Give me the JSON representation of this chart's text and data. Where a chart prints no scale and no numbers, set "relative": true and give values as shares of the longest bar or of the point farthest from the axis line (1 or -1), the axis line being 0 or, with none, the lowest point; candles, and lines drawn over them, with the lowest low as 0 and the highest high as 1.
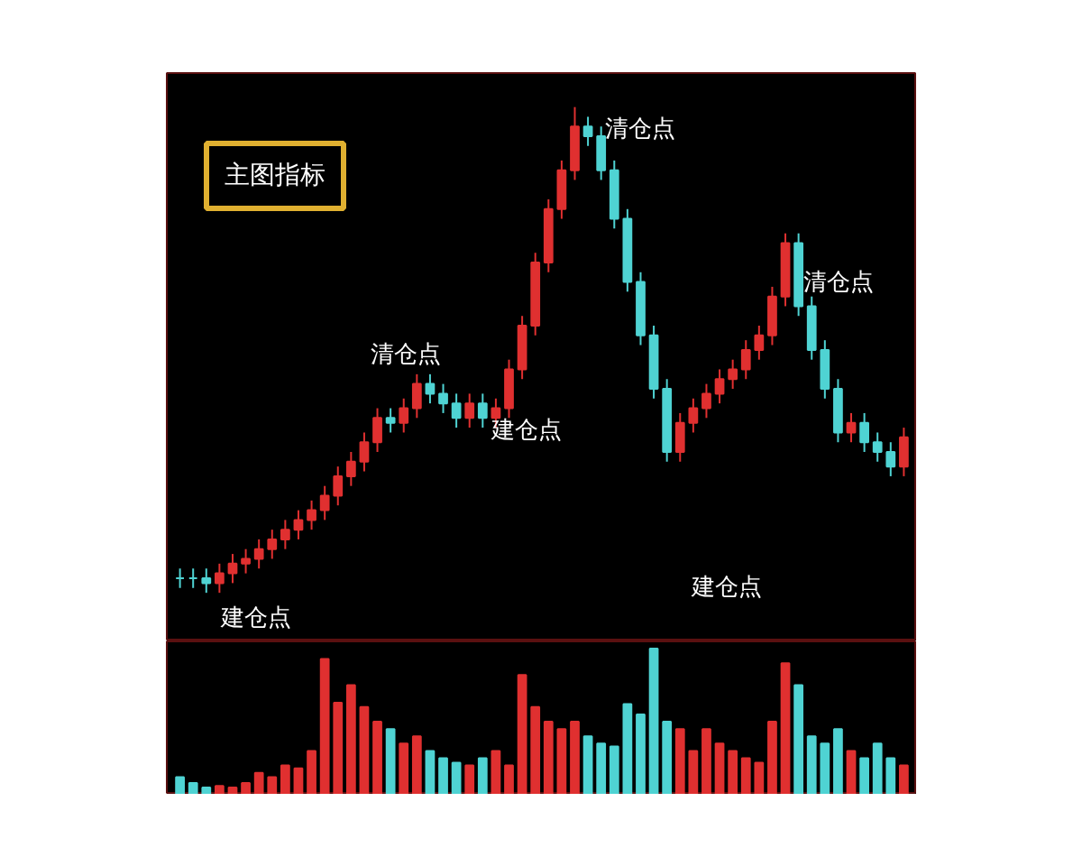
{
  "chart_data": [
    {
      "type": "candlestick",
      "title": "主图指标",
      "relative": true,
      "tick_labels": false,
      "categories": [
        null,
        null,
        null,
        null,
        null,
        null,
        null,
        null,
        null,
        null,
        null,
        null,
        null,
        null,
        null,
        null,
        null,
        null,
        null,
        null,
        null,
        null,
        null,
        null,
        null,
        null,
        null,
        null,
        null,
        null,
        null,
        null,
        null,
        null,
        null,
        null,
        null,
        null,
        null,
        null,
        null,
        null,
        null,
        null,
        null,
        null,
        null,
        null,
        null,
        null,
        null,
        null,
        null,
        null,
        null,
        null
      ],
      "ohlc": [
        [
          0.03,
          0.05,
          0.01,
          0.03
        ],
        [
          0.03,
          0.05,
          0.01,
          0.03
        ],
        [
          0.03,
          0.05,
          0.0,
          0.02
        ],
        [
          0.02,
          0.06,
          0.0,
          0.04
        ],
        [
          0.04,
          0.08,
          0.02,
          0.06
        ],
        [
          0.06,
          0.09,
          0.04,
          0.07
        ],
        [
          0.07,
          0.11,
          0.05,
          0.09
        ],
        [
          0.09,
          0.13,
          0.07,
          0.11
        ],
        [
          0.11,
          0.15,
          0.09,
          0.13
        ],
        [
          0.13,
          0.17,
          0.11,
          0.15
        ],
        [
          0.15,
          0.19,
          0.13,
          0.17
        ],
        [
          0.17,
          0.22,
          0.15,
          0.2
        ],
        [
          0.2,
          0.26,
          0.18,
          0.24
        ],
        [
          0.24,
          0.29,
          0.22,
          0.27
        ],
        [
          0.27,
          0.33,
          0.25,
          0.31
        ],
        [
          0.31,
          0.38,
          0.29,
          0.36
        ],
        [
          0.36,
          0.38,
          0.33,
          0.35
        ],
        [
          0.35,
          0.4,
          0.33,
          0.38
        ],
        [
          0.38,
          0.45,
          0.36,
          0.43
        ],
        [
          0.43,
          0.45,
          0.39,
          0.41
        ],
        [
          0.41,
          0.43,
          0.37,
          0.39
        ],
        [
          0.39,
          0.41,
          0.34,
          0.36
        ],
        [
          0.36,
          0.41,
          0.34,
          0.39
        ],
        [
          0.39,
          0.41,
          0.34,
          0.36
        ],
        [
          0.36,
          0.4,
          0.34,
          0.38
        ],
        [
          0.38,
          0.48,
          0.36,
          0.46
        ],
        [
          0.46,
          0.57,
          0.44,
          0.55
        ],
        [
          0.55,
          0.7,
          0.53,
          0.68
        ],
        [
          0.68,
          0.81,
          0.66,
          0.79
        ],
        [
          0.79,
          0.89,
          0.77,
          0.87
        ],
        [
          0.87,
          1.0,
          0.85,
          0.96
        ],
        [
          0.96,
          0.98,
          0.92,
          0.94
        ],
        [
          0.94,
          0.96,
          0.85,
          0.87
        ],
        [
          0.87,
          0.89,
          0.75,
          0.77
        ],
        [
          0.77,
          0.79,
          0.62,
          0.64
        ],
        [
          0.64,
          0.66,
          0.51,
          0.53
        ],
        [
          0.53,
          0.55,
          0.4,
          0.42
        ],
        [
          0.42,
          0.44,
          0.27,
          0.29
        ],
        [
          0.29,
          0.37,
          0.27,
          0.35
        ],
        [
          0.35,
          0.4,
          0.33,
          0.38
        ],
        [
          0.38,
          0.43,
          0.36,
          0.41
        ],
        [
          0.41,
          0.46,
          0.39,
          0.44
        ],
        [
          0.44,
          0.48,
          0.42,
          0.46
        ],
        [
          0.46,
          0.52,
          0.44,
          0.5
        ],
        [
          0.5,
          0.55,
          0.48,
          0.53
        ],
        [
          0.53,
          0.63,
          0.51,
          0.61
        ],
        [
          0.61,
          0.74,
          0.59,
          0.72
        ],
        [
          0.72,
          0.74,
          0.57,
          0.59
        ],
        [
          0.59,
          0.61,
          0.48,
          0.5
        ],
        [
          0.5,
          0.52,
          0.4,
          0.42
        ],
        [
          0.42,
          0.44,
          0.31,
          0.33
        ],
        [
          0.33,
          0.37,
          0.31,
          0.35
        ],
        [
          0.35,
          0.37,
          0.29,
          0.31
        ],
        [
          0.31,
          0.33,
          0.27,
          0.29
        ],
        [
          0.29,
          0.31,
          0.24,
          0.26
        ],
        [
          0.26,
          0.34,
          0.24,
          0.32
        ]
      ],
      "colors": [
        "#4fd3d3",
        "#4fd3d3",
        "#4fd3d3",
        "#e03030",
        "#e03030",
        "#e03030",
        "#e03030",
        "#e03030",
        "#e03030",
        "#e03030",
        "#e03030",
        "#e03030",
        "#e03030",
        "#e03030",
        "#e03030",
        "#e03030",
        "#4fd3d3",
        "#e03030",
        "#e03030",
        "#4fd3d3",
        "#4fd3d3",
        "#4fd3d3",
        "#e03030",
        "#4fd3d3",
        "#e03030",
        "#e03030",
        "#e03030",
        "#e03030",
        "#e03030",
        "#e03030",
        "#e03030",
        "#4fd3d3",
        "#4fd3d3",
        "#4fd3d3",
        "#4fd3d3",
        "#4fd3d3",
        "#4fd3d3",
        "#4fd3d3",
        "#e03030",
        "#e03030",
        "#e03030",
        "#e03030",
        "#e03030",
        "#e03030",
        "#e03030",
        "#e03030",
        "#e03030",
        "#4fd3d3",
        "#4fd3d3",
        "#4fd3d3",
        "#4fd3d3",
        "#e03030",
        "#4fd3d3",
        "#4fd3d3",
        "#4fd3d3",
        "#e03030"
      ],
      "annotations": [
        "建仓点",
        "清仓点",
        "建仓点",
        "清仓点",
        "建仓点",
        "清仓点"
      ]
    },
    {
      "type": "bar",
      "relative": true,
      "tick_labels": false,
      "categories": [
        null,
        null,
        null,
        null,
        null,
        null,
        null,
        null,
        null,
        null,
        null,
        null,
        null,
        null,
        null,
        null,
        null,
        null,
        null,
        null,
        null,
        null,
        null,
        null,
        null,
        null,
        null,
        null,
        null,
        null,
        null,
        null,
        null,
        null,
        null,
        null,
        null,
        null,
        null,
        null,
        null,
        null,
        null,
        null,
        null,
        null,
        null,
        null,
        null,
        null,
        null,
        null,
        null,
        null,
        null,
        null
      ],
      "values": [
        0.12,
        0.08,
        0.05,
        0.06,
        0.05,
        0.08,
        0.15,
        0.12,
        0.2,
        0.18,
        0.3,
        0.93,
        0.63,
        0.75,
        0.6,
        0.5,
        0.45,
        0.35,
        0.4,
        0.3,
        0.25,
        0.22,
        0.2,
        0.25,
        0.3,
        0.2,
        0.82,
        0.6,
        0.5,
        0.45,
        0.5,
        0.4,
        0.35,
        0.33,
        0.62,
        0.55,
        1.0,
        0.5,
        0.45,
        0.3,
        0.45,
        0.35,
        0.3,
        0.25,
        0.22,
        0.5,
        0.9,
        0.75,
        0.4,
        0.35,
        0.45,
        0.3,
        0.25,
        0.35,
        0.25,
        0.2
      ],
      "colors": [
        "#4fd3d3",
        "#4fd3d3",
        "#4fd3d3",
        "#e03030",
        "#e03030",
        "#e03030",
        "#e03030",
        "#e03030",
        "#e03030",
        "#e03030",
        "#e03030",
        "#e03030",
        "#e03030",
        "#e03030",
        "#e03030",
        "#e03030",
        "#4fd3d3",
        "#e03030",
        "#e03030",
        "#4fd3d3",
        "#4fd3d3",
        "#4fd3d3",
        "#e03030",
        "#4fd3d3",
        "#e03030",
        "#e03030",
        "#e03030",
        "#e03030",
        "#e03030",
        "#e03030",
        "#e03030",
        "#4fd3d3",
        "#4fd3d3",
        "#4fd3d3",
        "#4fd3d3",
        "#4fd3d3",
        "#4fd3d3",
        "#4fd3d3",
        "#e03030",
        "#e03030",
        "#e03030",
        "#e03030",
        "#e03030",
        "#e03030",
        "#e03030",
        "#e03030",
        "#e03030",
        "#4fd3d3",
        "#4fd3d3",
        "#4fd3d3",
        "#4fd3d3",
        "#e03030",
        "#4fd3d3",
        "#4fd3d3",
        "#4fd3d3",
        "#e03030"
      ]
    }
  ]
}
